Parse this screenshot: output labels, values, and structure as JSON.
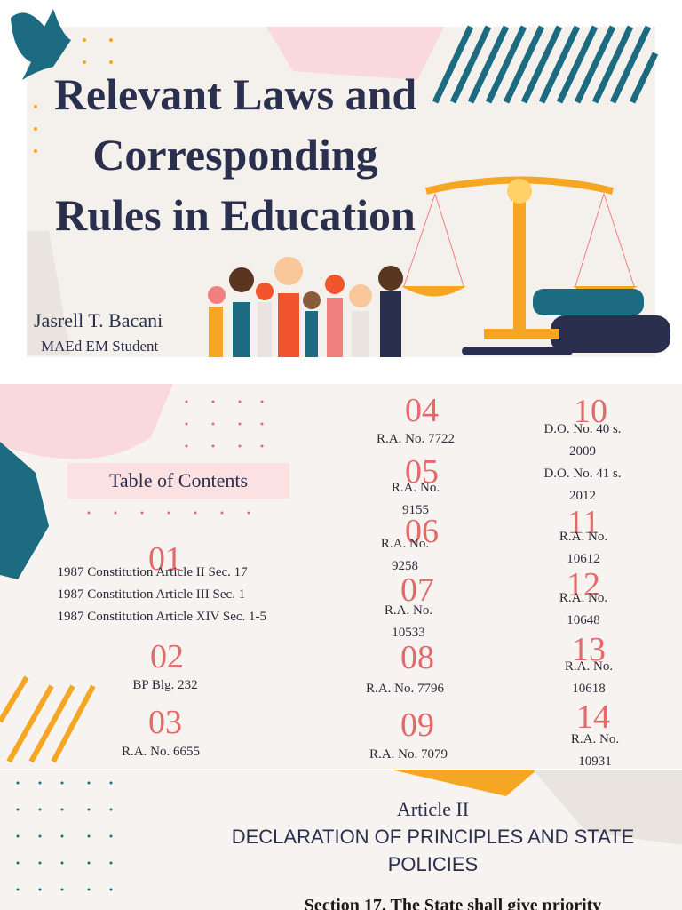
{
  "slide1": {
    "title_lines": [
      "Relevant Laws and",
      "Corresponding",
      "Rules in Education"
    ],
    "author": "Jasrell T. Bacani",
    "role": "MAEd EM Student"
  },
  "slide2": {
    "heading": "Table of Contents",
    "items": [
      {
        "number": "01",
        "lines": [
          "1987 Constitution Article II Sec. 17",
          "1987 Constitution Article III Sec. 1",
          "1987 Constitution Article XIV Sec. 1-5"
        ]
      },
      {
        "number": "02",
        "lines": [
          "BP Blg. 232"
        ]
      },
      {
        "number": "03",
        "lines": [
          "R.A. No. 6655"
        ]
      },
      {
        "number": "04",
        "lines": [
          "R.A. No. 7722"
        ]
      },
      {
        "number": "05",
        "lines": [
          "R.A. No. 9155"
        ]
      },
      {
        "number": "06",
        "lines": [
          "R.A. No. 9258"
        ]
      },
      {
        "number": "07",
        "lines": [
          "R.A. No. 10533"
        ]
      },
      {
        "number": "08",
        "lines": [
          "R.A. No. 7796"
        ]
      },
      {
        "number": "09",
        "lines": [
          "R.A. No. 7079"
        ]
      },
      {
        "number": "10",
        "lines": [
          "D.O. No. 40 s. 2009",
          "D.O. No. 41 s. 2012"
        ]
      },
      {
        "number": "11",
        "lines": [
          "R.A. No. 10612"
        ]
      },
      {
        "number": "12",
        "lines": [
          "R.A. No. 10648"
        ]
      },
      {
        "number": "13",
        "lines": [
          "R.A. No. 10618"
        ]
      },
      {
        "number": "14",
        "lines": [
          "R.A. No. 10931"
        ]
      }
    ]
  },
  "slide3": {
    "article": "Article II",
    "heading": "DECLARATION OF PRINCIPLES AND STATE POLICIES",
    "text": "Section 17. The State shall give priority"
  }
}
